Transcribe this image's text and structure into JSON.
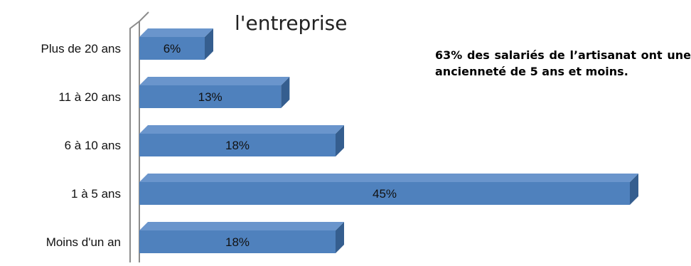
{
  "chart_data": {
    "type": "bar",
    "orientation": "horizontal",
    "title": "l'entreprise",
    "categories": [
      "Plus de 20 ans",
      "11 à 20 ans",
      "6 à 10 ans",
      "1 à 5 ans",
      "Moins d'un an"
    ],
    "values": [
      6,
      13,
      18,
      45,
      18
    ],
    "value_labels": [
      "6%",
      "13%",
      "18%",
      "45%",
      "18%"
    ],
    "unit": "%",
    "xlim": [
      0,
      45
    ],
    "grid": false,
    "legend": "none",
    "style": "3d",
    "colors": {
      "bar_front": "#4f81bd",
      "bar_top": "#6a95cc",
      "bar_side": "#355e8f",
      "axis_wall": "#8c8c8c"
    },
    "annotation": "63% des salariés de l’artisanat ont une ancienneté de 5 ans et moins."
  }
}
